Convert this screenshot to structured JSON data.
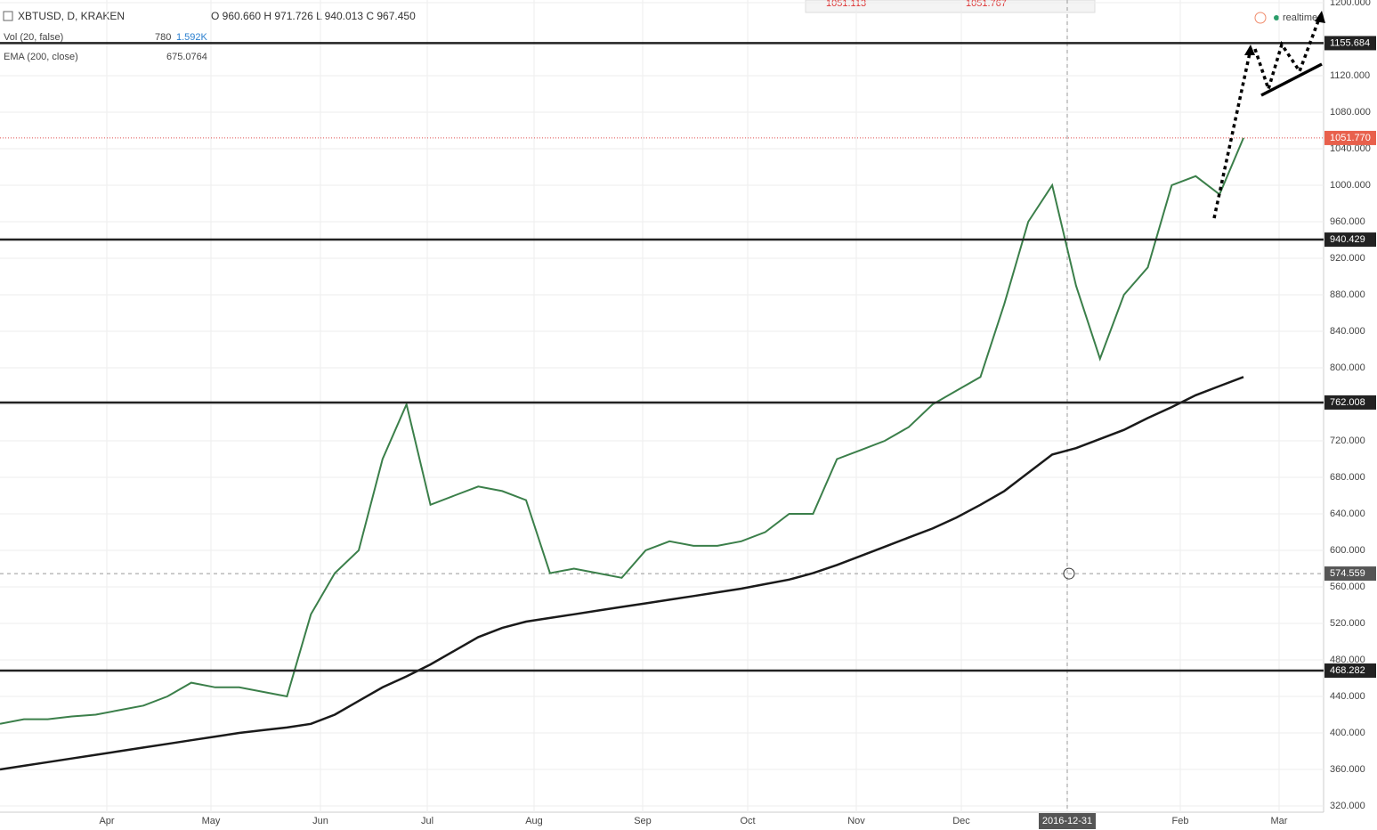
{
  "chart_data": {
    "type": "line",
    "title": "XBTUSD, D, KRAKEN",
    "ohlc": "O 960.660 H 971.726 L 940.013 C 967.450",
    "volume_label": "Vol (20, false)",
    "volume_values": [
      "780",
      "1.592K"
    ],
    "ema_value": "675.0764",
    "realtime": "realtime",
    "bid": "1051.113",
    "ask": "1051.767",
    "x_labels": [
      "Apr",
      "May",
      "Jun",
      "Jul",
      "Aug",
      "Sep",
      "Oct",
      "Nov",
      "Dec",
      "2016-12-31",
      "Feb",
      "Mar"
    ],
    "series": [
      {
        "color": "#3b7f4a",
        "values": [
          410,
          415,
          415,
          418,
          420,
          425,
          430,
          440,
          455,
          450,
          450,
          445,
          440,
          530,
          575,
          600,
          700,
          760,
          650,
          660,
          670,
          665,
          655,
          575,
          580,
          575,
          570,
          600,
          610,
          605,
          605,
          610,
          620,
          640,
          640,
          700,
          710,
          720,
          735,
          760,
          775,
          790,
          870,
          960,
          1000,
          890,
          810,
          880,
          910,
          1000,
          1010,
          990,
          1051.77
        ]
      },
      {
        "name": "EMA (200, close)",
        "color": "#1a1a1a",
        "values": [
          360,
          364,
          368,
          372,
          376,
          380,
          384,
          388,
          392,
          396,
          400,
          403,
          406,
          410,
          420,
          435,
          450,
          462,
          475,
          490,
          505,
          515,
          522,
          526,
          530,
          534,
          538,
          542,
          546,
          550,
          554,
          558,
          563,
          568,
          575,
          584,
          594,
          604,
          614,
          624,
          636,
          650,
          665,
          685,
          705,
          712,
          722,
          732,
          745,
          757,
          770,
          780,
          790
        ]
      }
    ],
    "levels": [
      1155.684,
      940.429,
      762.008,
      468.282
    ],
    "last_price": {
      "value": 1051.77,
      "label": "1051.770"
    },
    "crosshair": 574.559,
    "ylim": [
      320,
      1200
    ],
    "yticks": [
      {
        "value": 320,
        "label": "320.000"
      },
      {
        "value": 360,
        "label": "360.000"
      },
      {
        "value": 400,
        "label": "400.000"
      },
      {
        "value": 440,
        "label": "440.000"
      },
      {
        "value": 480,
        "label": "480.000"
      },
      {
        "value": 520,
        "label": "520.000"
      },
      {
        "value": 560,
        "label": "560.000"
      },
      {
        "value": 600,
        "label": "600.000"
      },
      {
        "value": 640,
        "label": "640.000"
      },
      {
        "value": 680,
        "label": "680.000"
      },
      {
        "value": 720,
        "label": "720.000"
      },
      {
        "value": 760,
        "label": "760.000"
      },
      {
        "value": 800,
        "label": "800.000"
      },
      {
        "value": 840,
        "label": "840.000"
      },
      {
        "value": 880,
        "label": "880.000"
      },
      {
        "value": 920,
        "label": "920.000"
      },
      {
        "value": 960,
        "label": "960.000"
      },
      {
        "value": 1000,
        "label": "1000.000"
      },
      {
        "value": 1040,
        "label": "1040.000"
      },
      {
        "value": 1080,
        "label": "1080.000"
      },
      {
        "value": 1120,
        "label": "1120.000"
      },
      {
        "value": 1200,
        "label": "1200.000"
      }
    ],
    "grid": true
  }
}
